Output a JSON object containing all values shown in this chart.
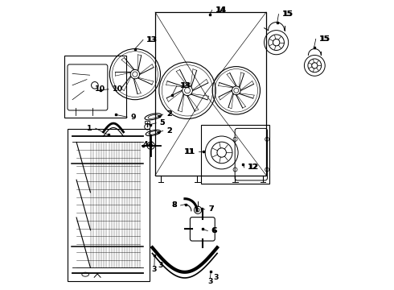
{
  "bg_color": "#ffffff",
  "line_color": "#000000",
  "fig_width": 4.9,
  "fig_height": 3.6,
  "dpi": 100
}
